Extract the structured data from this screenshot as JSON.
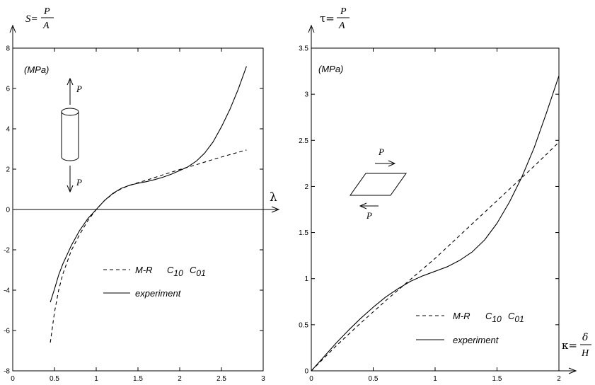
{
  "chart_data": [
    {
      "type": "line",
      "ylabel": {
        "lhs": "S=",
        "num": "P",
        "den": "A"
      },
      "xlabel": "λ",
      "units": "(MPa)",
      "xlim": [
        0,
        3
      ],
      "ylim": [
        -8,
        8
      ],
      "xticks": [
        "0",
        "0.5",
        "1",
        "1.5",
        "2",
        "2.5",
        "3"
      ],
      "yticks": [
        "-8",
        "-6",
        "-4",
        "-2",
        "0",
        "2",
        "4",
        "6",
        "8"
      ],
      "inset_labels": {
        "top": "P",
        "bottom": "P"
      },
      "legend": {
        "placement": "bottom-right",
        "items": [
          {
            "label": "M-R",
            "params": "C",
            "sub1": "10",
            "sub2": "01",
            "style": "dashed"
          },
          {
            "label": "experiment",
            "style": "solid"
          }
        ]
      },
      "series": [
        {
          "style": "dashed",
          "x": [
            0.45,
            0.5,
            0.55,
            0.6,
            0.7,
            0.8,
            0.9,
            1.0,
            1.1,
            1.2,
            1.3,
            1.4,
            1.5,
            1.6,
            1.8,
            2.0,
            2.2,
            2.4,
            2.6,
            2.8
          ],
          "y": [
            -6.6,
            -5.1,
            -4.0,
            -3.2,
            -2.05,
            -1.25,
            -0.55,
            0.0,
            0.45,
            0.78,
            1.03,
            1.2,
            1.33,
            1.45,
            1.72,
            1.98,
            2.22,
            2.48,
            2.72,
            2.95
          ]
        },
        {
          "style": "solid",
          "x": [
            0.45,
            0.5,
            0.55,
            0.6,
            0.7,
            0.8,
            0.9,
            1.0,
            1.1,
            1.2,
            1.3,
            1.4,
            1.5,
            1.6,
            1.7,
            1.8,
            1.9,
            2.0,
            2.1,
            2.2,
            2.3,
            2.4,
            2.5,
            2.6,
            2.7,
            2.8
          ],
          "y": [
            -4.6,
            -3.95,
            -3.25,
            -2.7,
            -1.8,
            -1.05,
            -0.45,
            0.0,
            0.45,
            0.8,
            1.05,
            1.2,
            1.3,
            1.38,
            1.48,
            1.6,
            1.75,
            1.93,
            2.12,
            2.4,
            2.8,
            3.35,
            4.1,
            4.95,
            5.95,
            7.1
          ]
        }
      ]
    },
    {
      "type": "line",
      "ylabel": {
        "lhs": "τ=",
        "num": "P",
        "den": "A"
      },
      "xlabel": {
        "lhs": "κ=",
        "num": "δ",
        "den": "H"
      },
      "units": "(MPa)",
      "xlim": [
        0,
        2
      ],
      "ylim": [
        0,
        3.5
      ],
      "xticks": [
        "0",
        "0.5",
        "1",
        "1.5",
        "2"
      ],
      "yticks": [
        "0",
        "0.5",
        "1",
        "1.5",
        "2",
        "2.5",
        "3",
        "3.5"
      ],
      "inset_labels": {
        "top": "P",
        "bottom": "P"
      },
      "legend": {
        "placement": "bottom-right",
        "items": [
          {
            "label": "M-R",
            "params": "C",
            "sub1": "10",
            "sub2": "01",
            "style": "dashed"
          },
          {
            "label": "experiment",
            "style": "solid"
          }
        ]
      },
      "series": [
        {
          "style": "dashed",
          "x": [
            0,
            0.2,
            0.4,
            0.6,
            0.8,
            1.0,
            1.2,
            1.4,
            1.6,
            1.8,
            2.0
          ],
          "y": [
            0,
            0.27,
            0.52,
            0.76,
            0.99,
            1.22,
            1.47,
            1.72,
            1.97,
            2.22,
            2.48
          ]
        },
        {
          "style": "solid",
          "x": [
            0,
            0.1,
            0.2,
            0.3,
            0.4,
            0.5,
            0.6,
            0.7,
            0.8,
            0.9,
            1.0,
            1.1,
            1.2,
            1.3,
            1.4,
            1.5,
            1.6,
            1.7,
            1.8,
            1.9,
            2.0
          ],
          "y": [
            0,
            0.15,
            0.3,
            0.44,
            0.57,
            0.69,
            0.8,
            0.89,
            0.97,
            1.03,
            1.08,
            1.13,
            1.2,
            1.29,
            1.42,
            1.6,
            1.83,
            2.1,
            2.42,
            2.8,
            3.2
          ]
        }
      ]
    }
  ]
}
